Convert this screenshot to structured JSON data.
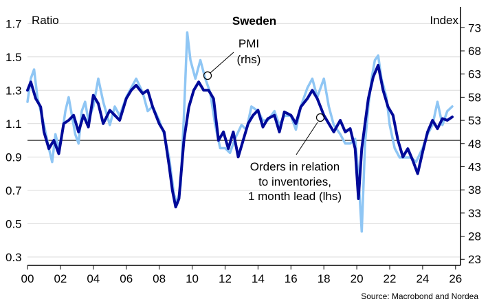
{
  "chart_data": {
    "type": "line",
    "title": "Sweden",
    "left_axis_label": "Ratio",
    "right_axis_label": "Index",
    "left_ylim": [
      0.25,
      1.8
    ],
    "right_ylim": [
      21.7,
      77.5
    ],
    "left_ticks": [
      "1.7",
      "1.5",
      "1.3",
      "1.1",
      "0.9",
      "0.7",
      "0.5",
      "0.3"
    ],
    "right_ticks": [
      "73",
      "68",
      "63",
      "58",
      "53",
      "48",
      "43",
      "38",
      "33",
      "28",
      "23"
    ],
    "x_ticks": [
      "00",
      "02",
      "04",
      "06",
      "08",
      "10",
      "12",
      "14",
      "16",
      "18",
      "20",
      "22",
      "24",
      "26"
    ],
    "xlim": [
      2000,
      2026.3
    ],
    "reference_line": 1.0,
    "grid": "horizontal",
    "colors": {
      "pmi": "#8fc6f4",
      "orders": "#000a99",
      "grid": "#d9d9d9",
      "reference": "#000000"
    },
    "annotations": {
      "pmi": [
        "PMI",
        "(rhs)"
      ],
      "orders": [
        "Orders in relation",
        "to inventories,",
        "1 month lead (lhs)"
      ]
    },
    "source": "Source: Macrobond and Nordea",
    "series": [
      {
        "key": "pmi",
        "axis": "right",
        "x": [
          2000.0,
          2000.2,
          2000.4,
          2000.6,
          2000.8,
          2001.0,
          2001.3,
          2001.5,
          2001.7,
          2001.9,
          2002.1,
          2002.3,
          2002.5,
          2002.7,
          2002.9,
          2003.1,
          2003.3,
          2003.5,
          2003.7,
          2004.0,
          2004.3,
          2004.6,
          2005.0,
          2005.3,
          2005.6,
          2006.0,
          2006.3,
          2006.6,
          2007.0,
          2007.3,
          2007.6,
          2008.0,
          2008.3,
          2008.6,
          2008.9,
          2009.1,
          2009.3,
          2009.5,
          2009.7,
          2009.9,
          2010.2,
          2010.5,
          2010.8,
          2011.1,
          2011.4,
          2011.7,
          2012.0,
          2012.3,
          2012.6,
          2013.0,
          2013.3,
          2013.6,
          2014.0,
          2014.3,
          2014.6,
          2015.0,
          2015.3,
          2015.6,
          2016.0,
          2016.3,
          2016.6,
          2017.0,
          2017.3,
          2017.6,
          2018.0,
          2018.3,
          2018.6,
          2019.0,
          2019.3,
          2019.6,
          2019.9,
          2020.1,
          2020.3,
          2020.5,
          2020.7,
          2020.9,
          2021.1,
          2021.3,
          2021.5,
          2021.8,
          2022.0,
          2022.3,
          2022.6,
          2023.0,
          2023.3,
          2023.6,
          2024.0,
          2024.3,
          2024.6,
          2024.9,
          2025.2,
          2025.5,
          2025.8
        ],
        "y": [
          57,
          62,
          64,
          58,
          55,
          52,
          47,
          44,
          50,
          47,
          50,
          55,
          58,
          54,
          50,
          48,
          55,
          57,
          53,
          56,
          62,
          57,
          52,
          56,
          54,
          58,
          60,
          62,
          59,
          55,
          56,
          53,
          50,
          45,
          37,
          35,
          39,
          54,
          72,
          66,
          62,
          66,
          62,
          59,
          52,
          47,
          47,
          46,
          49,
          52,
          51,
          56,
          55,
          53,
          53,
          55,
          52,
          54,
          54,
          51,
          56,
          60,
          62,
          58,
          62,
          56,
          52,
          50,
          48,
          48,
          49,
          41,
          29,
          48,
          56,
          62,
          66,
          67,
          62,
          58,
          52,
          47,
          45,
          45,
          45,
          44,
          47,
          50,
          52,
          57,
          52,
          55,
          56
        ]
      },
      {
        "key": "orders",
        "axis": "left",
        "x": [
          2000.0,
          2000.2,
          2000.5,
          2000.8,
          2001.0,
          2001.3,
          2001.6,
          2001.9,
          2002.2,
          2002.5,
          2002.8,
          2003.1,
          2003.4,
          2003.7,
          2004.0,
          2004.3,
          2004.6,
          2005.0,
          2005.3,
          2005.6,
          2006.0,
          2006.3,
          2006.6,
          2007.0,
          2007.3,
          2007.6,
          2008.0,
          2008.3,
          2008.6,
          2008.8,
          2009.0,
          2009.2,
          2009.5,
          2009.8,
          2010.1,
          2010.4,
          2010.7,
          2011.0,
          2011.3,
          2011.6,
          2011.9,
          2012.2,
          2012.5,
          2012.8,
          2013.1,
          2013.4,
          2013.7,
          2014.0,
          2014.3,
          2014.6,
          2015.0,
          2015.3,
          2015.6,
          2016.0,
          2016.3,
          2016.6,
          2017.0,
          2017.3,
          2017.6,
          2018.0,
          2018.3,
          2018.6,
          2019.0,
          2019.3,
          2019.6,
          2019.9,
          2020.1,
          2020.3,
          2020.5,
          2020.7,
          2021.0,
          2021.3,
          2021.6,
          2021.9,
          2022.2,
          2022.5,
          2022.8,
          2023.1,
          2023.4,
          2023.7,
          2024.0,
          2024.3,
          2024.6,
          2024.9,
          2025.2,
          2025.5,
          2025.8
        ],
        "y": [
          1.3,
          1.35,
          1.25,
          1.2,
          1.05,
          0.95,
          1.0,
          0.92,
          1.1,
          1.12,
          1.15,
          1.05,
          1.15,
          1.08,
          1.27,
          1.22,
          1.1,
          1.18,
          1.15,
          1.12,
          1.25,
          1.3,
          1.33,
          1.28,
          1.3,
          1.2,
          1.1,
          1.05,
          0.85,
          0.7,
          0.6,
          0.65,
          1.0,
          1.2,
          1.3,
          1.35,
          1.3,
          1.3,
          1.25,
          1.0,
          1.05,
          0.95,
          1.05,
          0.9,
          1.0,
          1.1,
          1.15,
          1.18,
          1.08,
          1.13,
          1.15,
          1.05,
          1.17,
          1.15,
          1.1,
          1.2,
          1.25,
          1.3,
          1.25,
          1.15,
          1.1,
          1.05,
          1.12,
          1.05,
          1.07,
          0.95,
          0.65,
          0.95,
          1.1,
          1.25,
          1.38,
          1.45,
          1.3,
          1.2,
          1.15,
          1.0,
          0.9,
          0.95,
          0.88,
          0.8,
          0.93,
          1.05,
          1.12,
          1.07,
          1.13,
          1.12,
          1.14
        ]
      }
    ]
  }
}
